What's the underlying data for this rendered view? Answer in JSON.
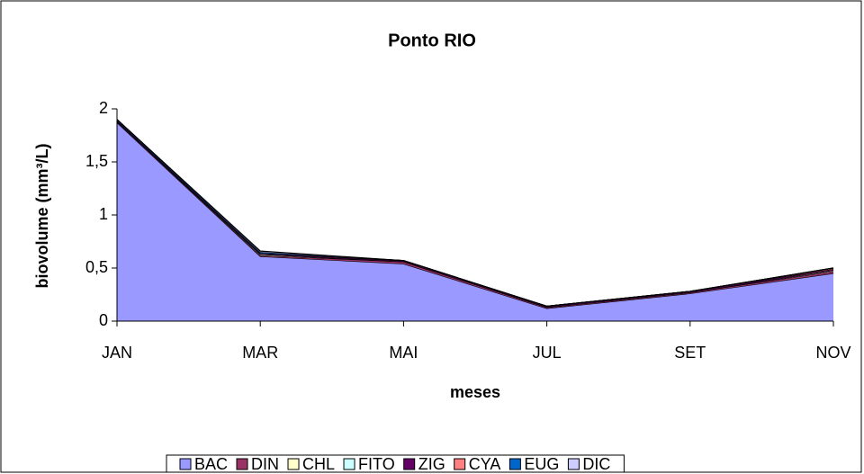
{
  "chart_data": {
    "type": "stacked-area",
    "title": "Ponto RIO",
    "x_label": "meses",
    "y_label": "biovolume (mm³/L)",
    "categories": [
      "JAN",
      "MAR",
      "MAI",
      "JUL",
      "SET",
      "NOV"
    ],
    "series": [
      {
        "name": "BAC",
        "color": "#9999ff",
        "values": [
          1.87,
          0.61,
          0.54,
          0.12,
          0.26,
          0.45
        ]
      },
      {
        "name": "DIN",
        "color": "#993366",
        "values": [
          0.01,
          0.01,
          0.02,
          0.01,
          0.01,
          0.02
        ]
      },
      {
        "name": "CHL",
        "color": "#ffffcc",
        "values": [
          0,
          0.01,
          0,
          0,
          0,
          0.01
        ]
      },
      {
        "name": "FITO",
        "color": "#ccffff",
        "values": [
          0,
          0,
          0,
          0,
          0,
          0
        ]
      },
      {
        "name": "ZIG",
        "color": "#660066",
        "values": [
          0.01,
          0.01,
          0.01,
          0.01,
          0.01,
          0.01
        ]
      },
      {
        "name": "CYA",
        "color": "#ff8080",
        "values": [
          0,
          0,
          0,
          0,
          0,
          0.01
        ]
      },
      {
        "name": "EUG",
        "color": "#0066cc",
        "values": [
          0.01,
          0.01,
          0,
          0,
          0,
          0
        ]
      },
      {
        "name": "DIC",
        "color": "#ccccff",
        "values": [
          0,
          0.01,
          0,
          0,
          0,
          0
        ]
      }
    ],
    "ylim": [
      0,
      2
    ],
    "yticks": [
      0,
      {
        "value": 0.5,
        "label": "0,5"
      },
      1,
      {
        "value": 1.5,
        "label": "1,5"
      },
      2
    ],
    "legend": "bottom"
  }
}
